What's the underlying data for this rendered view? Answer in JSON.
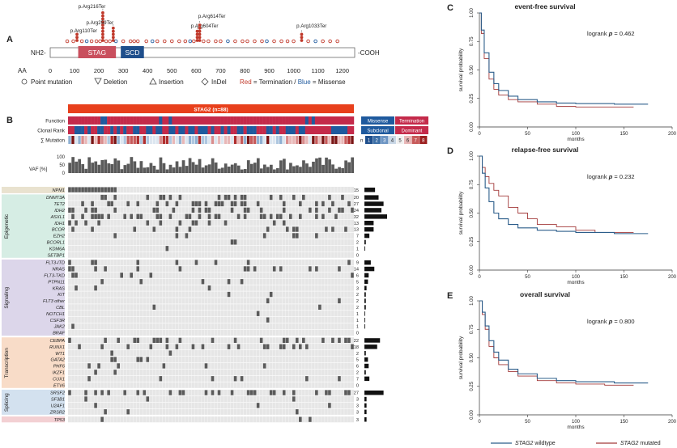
{
  "chart_data": {
    "type": "figure",
    "panelA": {
      "panel_label": "A",
      "nterm": "NH2-",
      "cterm": "-COOH",
      "axis_label": "AA",
      "ticks": [
        0,
        100,
        200,
        300,
        400,
        500,
        600,
        700,
        800,
        900,
        1000,
        1100,
        1200
      ],
      "protein_length": 1231,
      "domains": [
        {
          "name": "STAG",
          "start": 115,
          "end": 270,
          "color": "#c94f5d"
        },
        {
          "name": "SCD",
          "start": 290,
          "end": 385,
          "color": "#1f4f8c"
        }
      ],
      "annotations": [
        {
          "label": "p.Arg110Ter",
          "aa": 110,
          "count": 3
        },
        {
          "label": "p.Arg216Ter",
          "aa": 216,
          "count": 10
        },
        {
          "label": "p.Arg259Ter",
          "aa": 259,
          "count": 5
        },
        {
          "label": "p.Arg604Ter",
          "aa": 604,
          "count": 4
        },
        {
          "label": "p.Arg614Ter",
          "aa": 614,
          "count": 6
        },
        {
          "label": "p.Arg1033Ter",
          "aa": 1033,
          "count": 3
        }
      ],
      "legend": {
        "point": "Point mutation",
        "deletion": "Deletion",
        "insertion": "Insertion",
        "indel": "InDel",
        "red_word": "Red",
        "termination": "= Termination /",
        "blue_word": "Blue",
        "missense": "= Missense",
        "red_color": "#c0392b",
        "blue_color": "#1f5a9e"
      }
    },
    "panelB": {
      "panel_label": "B",
      "title": "STAG2 (n=88)",
      "n_patients": 88,
      "track_labels": [
        "Function",
        "Clonal Rank",
        "∑ Mutation"
      ],
      "function_legend": [
        "Missense",
        "Termination"
      ],
      "clonal_legend": [
        "Subclonal",
        "Dominant"
      ],
      "sum_legend_prefix": "n",
      "sum_legend": [
        "1",
        "2",
        "3",
        "4",
        "5",
        "6",
        "7",
        "8"
      ],
      "vaf_label": "VAF [%]",
      "vaf_ticks": [
        "100",
        "50",
        "0"
      ],
      "groups": [
        {
          "name": "Epigenetic",
          "color": "#d6ede4",
          "genes": [
            {
              "gene": "DNMT3A",
              "count": 20
            },
            {
              "gene": "TET2",
              "count": 27
            },
            {
              "gene": "IDH2",
              "count": 24
            },
            {
              "gene": "ASXL1",
              "count": 32
            },
            {
              "gene": "IDH1",
              "count": 13
            },
            {
              "gene": "BCOR",
              "count": 13
            },
            {
              "gene": "EZH2",
              "count": 7
            },
            {
              "gene": "BCORL1",
              "count": 2
            },
            {
              "gene": "KDM6A",
              "count": 1
            },
            {
              "gene": "SETBP1",
              "count": 0
            }
          ]
        },
        {
          "name": "Signaling",
          "color": "#dcd6ea",
          "genes": [
            {
              "gene": "FLT3-ITD",
              "count": 9
            },
            {
              "gene": "NRAS",
              "count": 14
            },
            {
              "gene": "FLT3-TKD",
              "count": 6
            },
            {
              "gene": "PTPN11",
              "count": 5
            },
            {
              "gene": "KRAS",
              "count": 3
            },
            {
              "gene": "KIT",
              "count": 2
            },
            {
              "gene": "FLT3 other",
              "count": 2
            },
            {
              "gene": "CBL",
              "count": 2
            },
            {
              "gene": "NOTCH1",
              "count": 1
            },
            {
              "gene": "CSF3R",
              "count": 1
            },
            {
              "gene": "JAK2",
              "count": 1
            },
            {
              "gene": "BRAF",
              "count": 0
            }
          ]
        },
        {
          "name": "Transcription",
          "color": "#f8dcc8",
          "genes": [
            {
              "gene": "CEBPA",
              "count": 22
            },
            {
              "gene": "RUNX1",
              "count": 18
            },
            {
              "gene": "WT1",
              "count": 2
            },
            {
              "gene": "GATA2",
              "count": 5
            },
            {
              "gene": "PHF6",
              "count": 6
            },
            {
              "gene": "IKZF1",
              "count": 2
            },
            {
              "gene": "CUX1",
              "count": 7
            },
            {
              "gene": "ETV6",
              "count": 0
            }
          ]
        },
        {
          "name": "Splicing",
          "color": "#d3e1ef",
          "genes": [
            {
              "gene": "SRSF2",
              "count": 27
            },
            {
              "gene": "SF3B1",
              "count": 3
            },
            {
              "gene": "U2AF1",
              "count": 3
            },
            {
              "gene": "ZRSR2",
              "count": 3
            }
          ]
        },
        {
          "name": "",
          "color": "#f3d0d3",
          "genes": [
            {
              "gene": "TP53",
              "count": 3
            }
          ]
        }
      ],
      "npm1": {
        "gene": "NPM1",
        "count": 15,
        "color": "#e9e2cf"
      }
    },
    "survival": [
      {
        "panel_label": "C",
        "title": "event-free survival",
        "logrank_prefix": "logrank",
        "p_symbol": "p",
        "p_value": "= 0.462",
        "ylabel": "survival probability",
        "xlabel": "months",
        "yticks": [
          "0.00",
          "0.25",
          "0.50",
          "0.75",
          "1.00"
        ],
        "xticks": [
          "0",
          "50",
          "100",
          "150",
          "200"
        ],
        "x_range": [
          0,
          200
        ],
        "y_range": [
          0,
          1
        ],
        "wildtype": [
          [
            0,
            1
          ],
          [
            2,
            0.85
          ],
          [
            5,
            0.65
          ],
          [
            10,
            0.48
          ],
          [
            15,
            0.38
          ],
          [
            20,
            0.32
          ],
          [
            30,
            0.27
          ],
          [
            40,
            0.24
          ],
          [
            60,
            0.22
          ],
          [
            80,
            0.21
          ],
          [
            100,
            0.205
          ],
          [
            140,
            0.2
          ],
          [
            175,
            0.2
          ]
        ],
        "mutated": [
          [
            0,
            1
          ],
          [
            2,
            0.82
          ],
          [
            5,
            0.6
          ],
          [
            10,
            0.42
          ],
          [
            15,
            0.33
          ],
          [
            20,
            0.28
          ],
          [
            30,
            0.24
          ],
          [
            40,
            0.22
          ],
          [
            60,
            0.2
          ],
          [
            80,
            0.18
          ],
          [
            100,
            0.175
          ],
          [
            130,
            0.175
          ],
          [
            160,
            0.175
          ]
        ]
      },
      {
        "panel_label": "D",
        "title": "relapse-free survival",
        "logrank_prefix": "logrank",
        "p_symbol": "p",
        "p_value": "= 0.232",
        "ylabel": "survival probability",
        "xlabel": "months",
        "yticks": [
          "0.00",
          "0.25",
          "0.50",
          "0.75",
          "1.00"
        ],
        "xticks": [
          "0",
          "50",
          "100",
          "150",
          "200"
        ],
        "x_range": [
          0,
          200
        ],
        "y_range": [
          0,
          1
        ],
        "wildtype": [
          [
            0,
            1
          ],
          [
            3,
            0.85
          ],
          [
            6,
            0.72
          ],
          [
            10,
            0.6
          ],
          [
            15,
            0.5
          ],
          [
            20,
            0.45
          ],
          [
            30,
            0.4
          ],
          [
            40,
            0.37
          ],
          [
            60,
            0.35
          ],
          [
            80,
            0.34
          ],
          [
            100,
            0.33
          ],
          [
            140,
            0.32
          ],
          [
            175,
            0.32
          ]
        ],
        "mutated": [
          [
            0,
            1
          ],
          [
            3,
            0.9
          ],
          [
            6,
            0.82
          ],
          [
            10,
            0.76
          ],
          [
            15,
            0.7
          ],
          [
            20,
            0.65
          ],
          [
            30,
            0.55
          ],
          [
            40,
            0.5
          ],
          [
            50,
            0.45
          ],
          [
            60,
            0.4
          ],
          [
            80,
            0.38
          ],
          [
            100,
            0.35
          ],
          [
            120,
            0.33
          ],
          [
            150,
            0.33
          ],
          [
            160,
            0.33
          ]
        ]
      },
      {
        "panel_label": "E",
        "title": "overall survival",
        "logrank_prefix": "logrank",
        "p_symbol": "p",
        "p_value": "= 0.800",
        "ylabel": "survival probability",
        "xlabel": "months",
        "yticks": [
          "0.00",
          "0.25",
          "0.50",
          "0.75",
          "1.00"
        ],
        "xticks": [
          "0",
          "50",
          "100",
          "150",
          "200"
        ],
        "x_range": [
          0,
          200
        ],
        "y_range": [
          0,
          1
        ],
        "wildtype": [
          [
            0,
            1
          ],
          [
            3,
            0.9
          ],
          [
            6,
            0.78
          ],
          [
            10,
            0.65
          ],
          [
            15,
            0.55
          ],
          [
            20,
            0.48
          ],
          [
            30,
            0.4
          ],
          [
            40,
            0.36
          ],
          [
            60,
            0.32
          ],
          [
            80,
            0.3
          ],
          [
            100,
            0.29
          ],
          [
            140,
            0.28
          ],
          [
            175,
            0.28
          ]
        ],
        "mutated": [
          [
            0,
            1
          ],
          [
            3,
            0.88
          ],
          [
            6,
            0.75
          ],
          [
            10,
            0.6
          ],
          [
            15,
            0.5
          ],
          [
            20,
            0.44
          ],
          [
            30,
            0.38
          ],
          [
            40,
            0.34
          ],
          [
            60,
            0.3
          ],
          [
            80,
            0.28
          ],
          [
            100,
            0.27
          ],
          [
            130,
            0.26
          ],
          [
            160,
            0.26
          ]
        ]
      }
    ],
    "survival_legend": {
      "wildtype_gene": "STAG2",
      "wildtype_label": "wildtype",
      "wildtype_color": "#2b5d8a",
      "mutated_gene": "STAG2",
      "mutated_label": "mutated",
      "mutated_color": "#a33a3a"
    }
  }
}
